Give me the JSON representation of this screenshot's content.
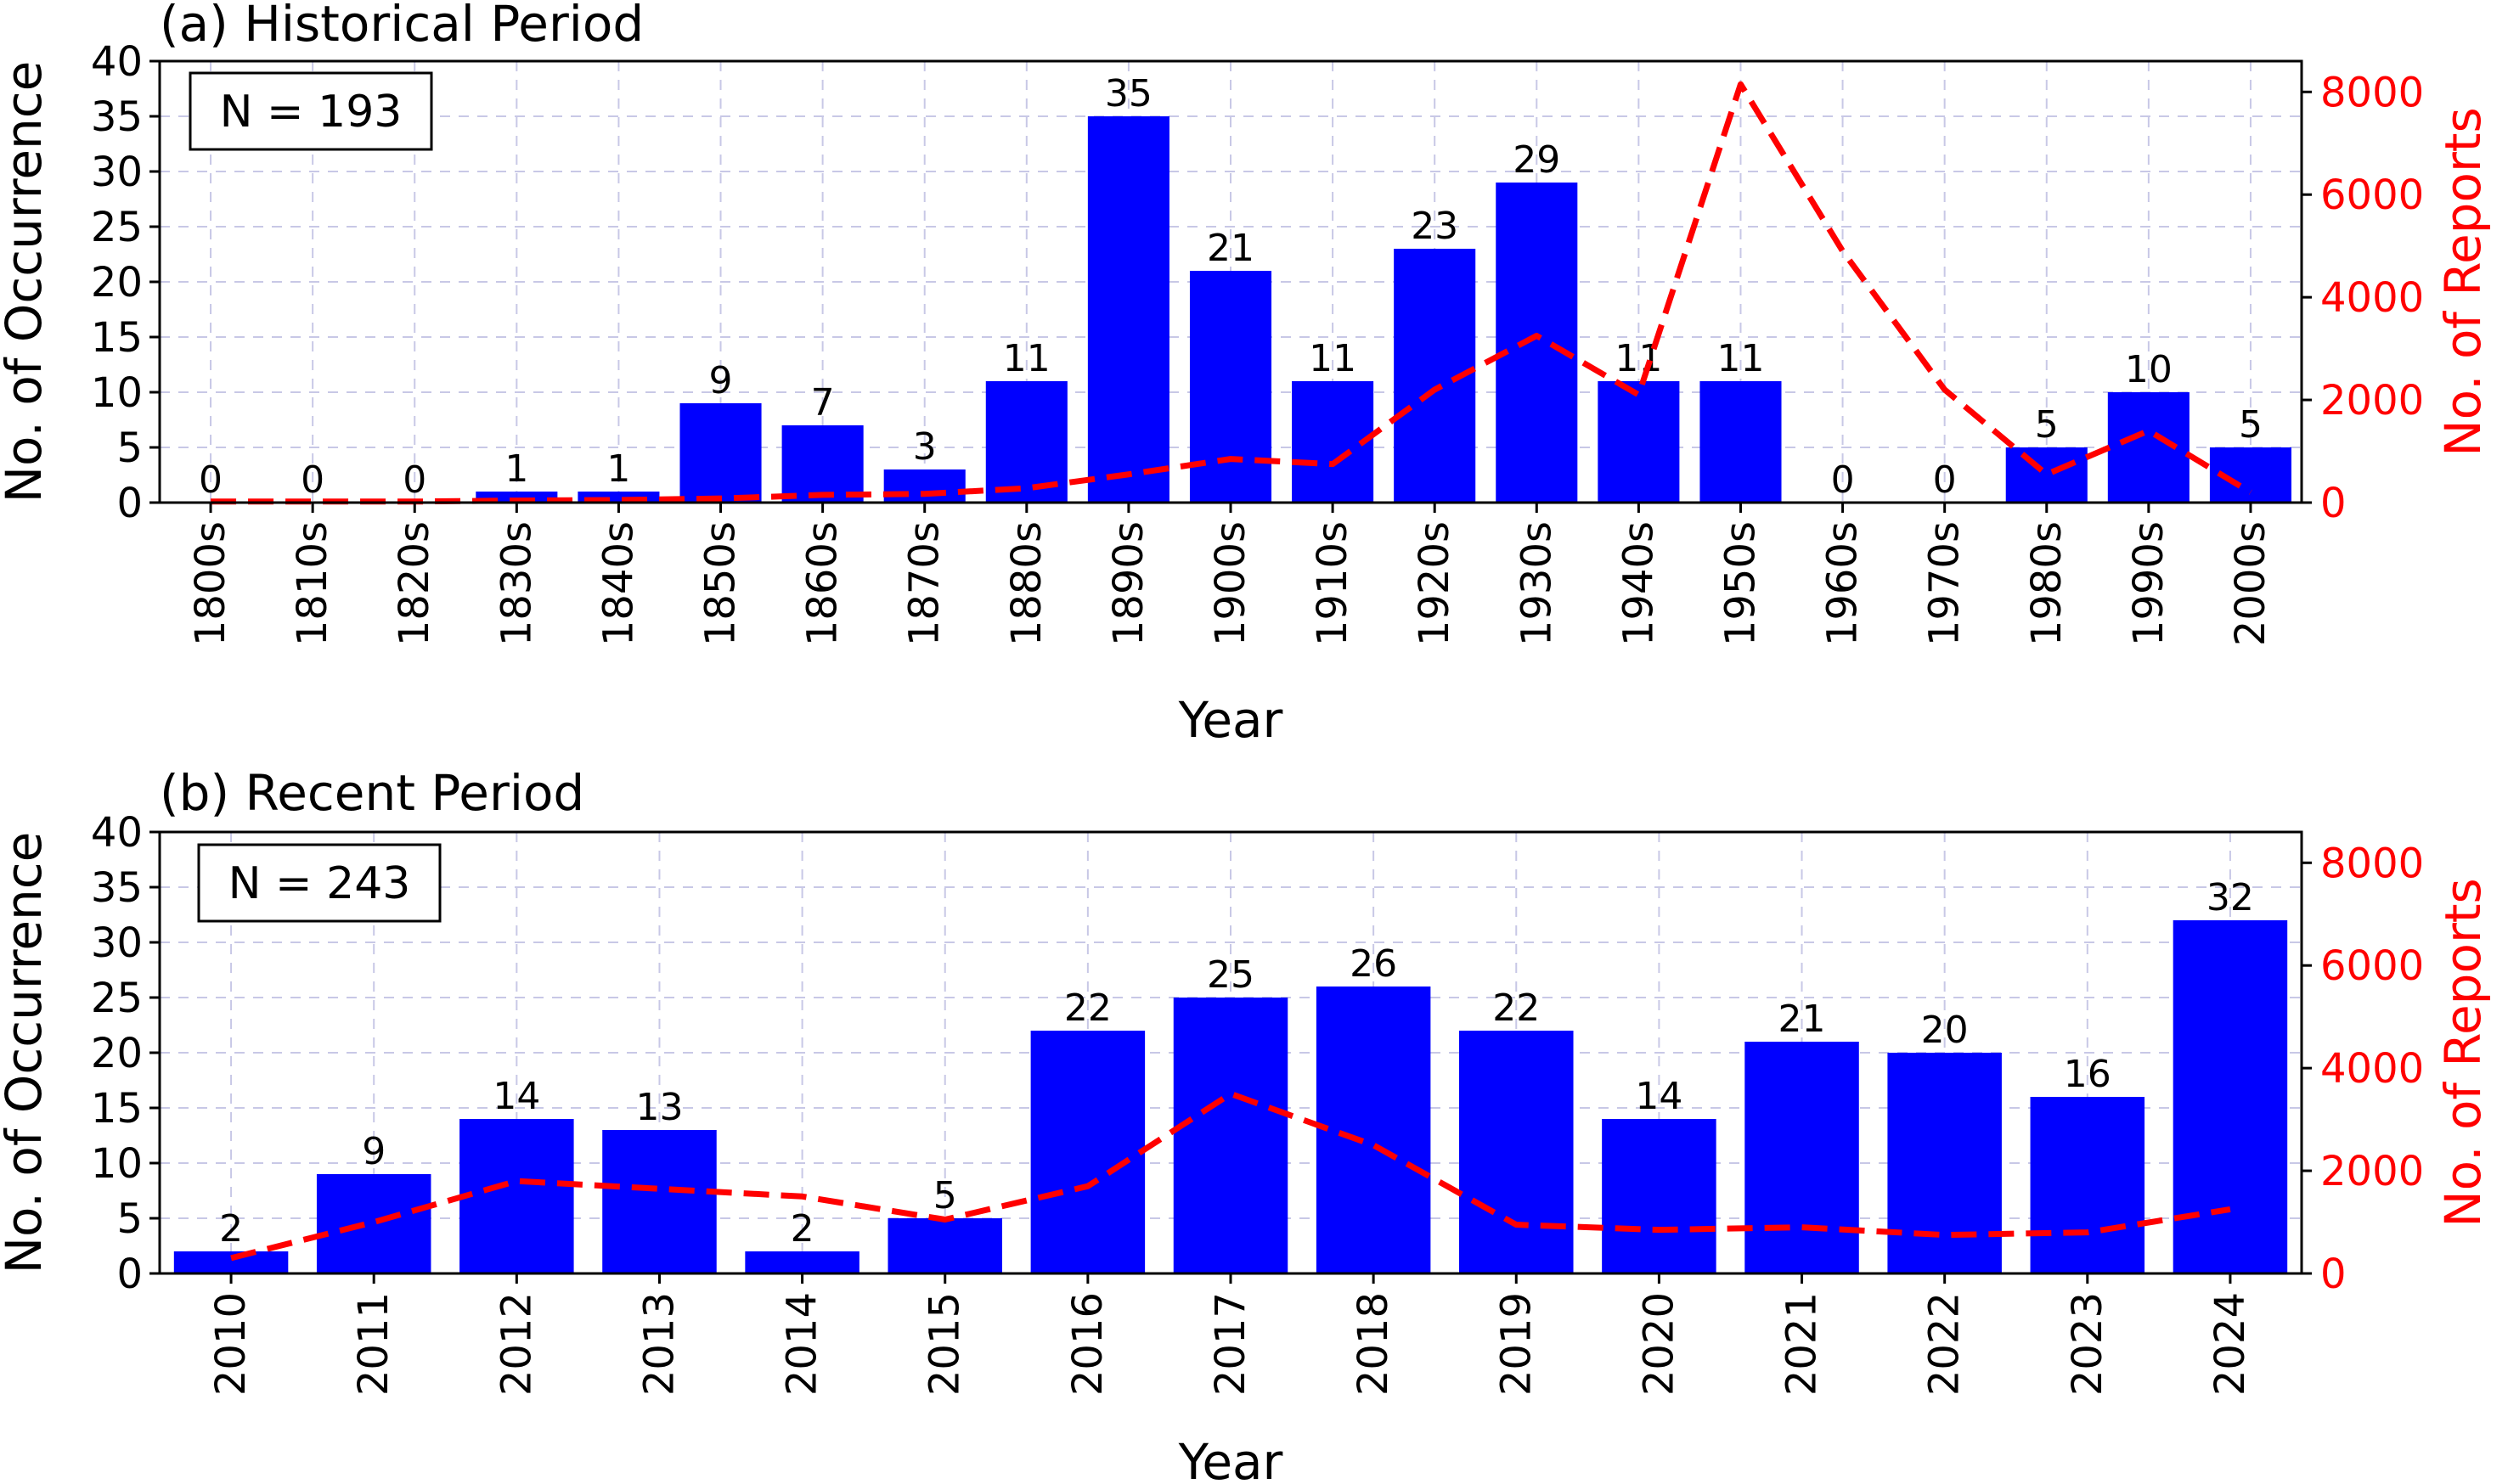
{
  "chart_data": [
    {
      "type": "bar",
      "title": "(a) Historical Period",
      "xlabel": "Year",
      "ylabel": "No. of Occurrence",
      "y2label": "No. of Reports",
      "annotation": "N = 193",
      "ylim": [
        0,
        40
      ],
      "y2lim": [
        0,
        8600
      ],
      "yticks": [
        "0",
        "5",
        "10",
        "15",
        "20",
        "25",
        "30",
        "35",
        "40"
      ],
      "y2ticks": [
        "0",
        "2000",
        "4000",
        "6000",
        "8000"
      ],
      "categories": [
        "1800s",
        "1810s",
        "1820s",
        "1830s",
        "1840s",
        "1850s",
        "1860s",
        "1870s",
        "1880s",
        "1890s",
        "1900s",
        "1910s",
        "1920s",
        "1930s",
        "1940s",
        "1950s",
        "1960s",
        "1970s",
        "1980s",
        "1990s",
        "2000s"
      ],
      "values": [
        0,
        0,
        0,
        1,
        1,
        9,
        7,
        3,
        11,
        35,
        21,
        11,
        23,
        29,
        11,
        11,
        0,
        0,
        5,
        10,
        5
      ],
      "value_labels": [
        "0",
        "0",
        "0",
        "1",
        "1",
        "9",
        "7",
        "3",
        "11",
        "35",
        "21",
        "11",
        "23",
        "29",
        "11",
        "11",
        "0",
        "0",
        "5",
        "10",
        "5"
      ],
      "line_values": [
        20,
        20,
        20,
        40,
        50,
        80,
        150,
        170,
        280,
        550,
        850,
        750,
        2200,
        3250,
        2100,
        8150,
        4900,
        2200,
        550,
        1400,
        200
      ],
      "bar_color": "#0000ff",
      "line_color": "#ff0000",
      "grid": true
    },
    {
      "type": "bar",
      "title": "(b) Recent Period",
      "xlabel": "Year",
      "ylabel": "No. of Occurrence",
      "y2label": "No. of Reports",
      "annotation": "N = 243",
      "ylim": [
        0,
        40
      ],
      "y2lim": [
        0,
        8600
      ],
      "yticks": [
        "0",
        "5",
        "10",
        "15",
        "20",
        "25",
        "30",
        "35",
        "40"
      ],
      "y2ticks": [
        "0",
        "2000",
        "4000",
        "6000",
        "8000"
      ],
      "categories": [
        "2010",
        "2011",
        "2012",
        "2013",
        "2014",
        "2015",
        "2016",
        "2017",
        "2018",
        "2019",
        "2020",
        "2021",
        "2022",
        "2023",
        "2024"
      ],
      "values": [
        2,
        9,
        14,
        13,
        2,
        5,
        22,
        25,
        26,
        22,
        14,
        21,
        20,
        16,
        32
      ],
      "value_labels": [
        "2",
        "9",
        "14",
        "13",
        "2",
        "5",
        "22",
        "25",
        "26",
        "22",
        "14",
        "21",
        "20",
        "16",
        "32"
      ],
      "line_values": [
        300,
        1000,
        1800,
        1650,
        1500,
        1050,
        1700,
        3500,
        2500,
        950,
        850,
        900,
        750,
        800,
        1250
      ],
      "bar_color": "#0000ff",
      "line_color": "#ff0000",
      "grid": true
    }
  ]
}
